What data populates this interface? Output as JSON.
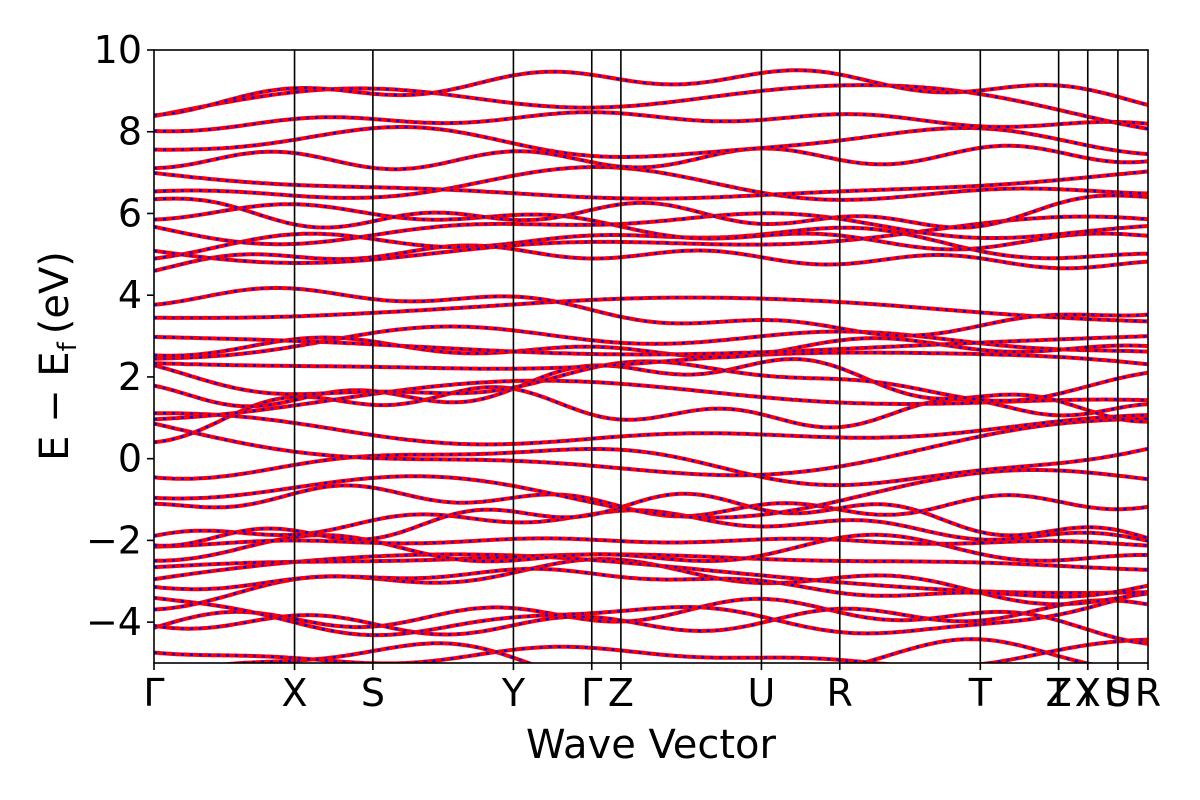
{
  "chart_data": {
    "type": "line",
    "title": "",
    "xlabel": "Wave Vector",
    "ylabel": "E − E",
    "ylabel_subscript": "f",
    "ylabel_unit": "(eV)",
    "ylim": [
      -5,
      10
    ],
    "yticks": [
      -4,
      -2,
      0,
      2,
      4,
      6,
      8,
      10
    ],
    "ytick_labels": [
      "−4",
      "−2",
      "0",
      "2",
      "4",
      "6",
      "8",
      "10"
    ],
    "xlim": [
      0,
      1.0
    ],
    "kpoints": [
      {
        "label": "Γ",
        "x": 0.0
      },
      {
        "label": "X",
        "x": 0.1414
      },
      {
        "label": "S",
        "x": 0.2202
      },
      {
        "label": "Y",
        "x": 0.3616
      },
      {
        "label": "Γ",
        "x": 0.4404
      },
      {
        "label": "Z",
        "x": 0.4697
      },
      {
        "label": "U",
        "x": 0.6111
      },
      {
        "label": "R",
        "x": 0.6899
      },
      {
        "label": "T",
        "x": 0.8313
      },
      {
        "label": "Z",
        "x": 0.9101
      },
      {
        "label": "T",
        "x": 0.9101
      },
      {
        "label": "X",
        "x": 0.9394
      },
      {
        "label": "Y",
        "x": 0.9394
      },
      {
        "label": "U",
        "x": 0.9697
      },
      {
        "label": "S",
        "x": 0.9697
      },
      {
        "label": "R",
        "x": 1.0
      }
    ],
    "series": [
      {
        "color": "#ff0000",
        "style": "solid"
      },
      {
        "color": "#0000ff",
        "style": "dotted"
      }
    ],
    "band_energies_at_gamma": [
      -4.9,
      -4.6,
      -4.2,
      -3.9,
      -3.6,
      -3.3,
      -3.1,
      -2.8,
      -2.6,
      -2.3,
      -2.1,
      -1.9,
      -1.6,
      -1.4,
      -0.5,
      0.1,
      0.6,
      0.8,
      1.0,
      1.2,
      1.4,
      2.0,
      2.2,
      2.5,
      2.7,
      3.0,
      3.5,
      3.8,
      4.6,
      5.0,
      5.3,
      5.7,
      6.0,
      6.3,
      6.6,
      7.0,
      7.4,
      7.8,
      8.1,
      8.4,
      8.7
    ],
    "grid": false,
    "legend": "none"
  }
}
